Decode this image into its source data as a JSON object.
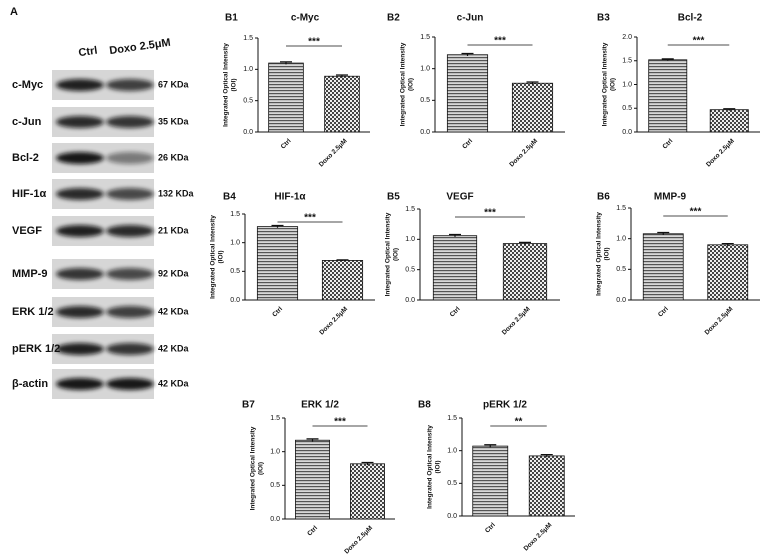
{
  "blot": {
    "label": "A",
    "lanes": [
      "Ctrl",
      "Doxo 2.5μM"
    ],
    "rows": [
      {
        "name": "c-Myc",
        "size": "67 KDa"
      },
      {
        "name": "c-Jun",
        "size": "35 KDa"
      },
      {
        "name": "Bcl-2",
        "size": "26 KDa"
      },
      {
        "name": "HIF-1α",
        "size": "132 KDa"
      },
      {
        "name": "VEGF",
        "size": "21 KDa"
      },
      {
        "name": "MMP-9",
        "size": "92 KDa"
      },
      {
        "name": "ERK 1/2",
        "size": "42 KDa"
      },
      {
        "name": "pERK 1/2",
        "size": "42 KDa"
      },
      {
        "name": "β-actin",
        "size": "42 KDa"
      }
    ]
  },
  "chart_data": [
    {
      "type": "bar",
      "panel": "B1",
      "title": "c-Myc",
      "ylabel": [
        "Integrated  Optical Intensity",
        "(IOI)"
      ],
      "categories": [
        "Ctrl",
        "Doxo 2.5μM"
      ],
      "values": [
        1.1,
        0.89
      ],
      "errors": [
        0.02,
        0.02
      ],
      "annotation": "***",
      "ylim": [
        0,
        1.5
      ],
      "yticks": [
        {
          "value": 0,
          "label": "0.0"
        },
        {
          "value": 0.5,
          "label": "0.5"
        },
        {
          "value": 1,
          "label": "1.0"
        },
        {
          "value": 1.5,
          "label": "1.5"
        }
      ]
    },
    {
      "type": "bar",
      "panel": "B2",
      "title": "c-Jun",
      "ylabel": [
        "Integrated  Optical Intensity",
        "(IOI)"
      ],
      "categories": [
        "Ctrl",
        "Doxo 2.5μM"
      ],
      "values": [
        1.22,
        0.77
      ],
      "errors": [
        0.02,
        0.02
      ],
      "annotation": "***",
      "ylim": [
        0,
        1.5
      ],
      "yticks": [
        {
          "value": 0,
          "label": "0.0"
        },
        {
          "value": 0.5,
          "label": "0.5"
        },
        {
          "value": 1,
          "label": "1.0"
        },
        {
          "value": 1.5,
          "label": "1.5"
        }
      ]
    },
    {
      "type": "bar",
      "panel": "B3",
      "title": "Bcl-2",
      "ylabel": [
        "Integrated  Optical Intensity",
        "(IOI)"
      ],
      "categories": [
        "Ctrl",
        "Doxo 2.5μM"
      ],
      "values": [
        1.52,
        0.47
      ],
      "errors": [
        0.02,
        0.02
      ],
      "annotation": "***",
      "ylim": [
        0,
        2
      ],
      "yticks": [
        {
          "value": 0,
          "label": "0.0"
        },
        {
          "value": 0.5,
          "label": "0.5"
        },
        {
          "value": 1,
          "label": "1.0"
        },
        {
          "value": 1.5,
          "label": "1.5"
        },
        {
          "value": 2,
          "label": "2.0"
        }
      ]
    },
    {
      "type": "bar",
      "panel": "B4",
      "title": "HIF-1α",
      "ylabel": [
        "Integrated  Optical Intensity",
        "(IOI)"
      ],
      "categories": [
        "Ctrl",
        "Doxo 2.5μM"
      ],
      "values": [
        1.28,
        0.69
      ],
      "errors": [
        0.02,
        0.01
      ],
      "annotation": "***",
      "ylim": [
        0,
        1.5
      ],
      "yticks": [
        {
          "value": 0,
          "label": "0.0"
        },
        {
          "value": 0.5,
          "label": "0.5"
        },
        {
          "value": 1,
          "label": "1.0"
        },
        {
          "value": 1.5,
          "label": "1.5"
        }
      ]
    },
    {
      "type": "bar",
      "panel": "B5",
      "title": "VEGF",
      "ylabel": [
        "Integrated  Optical Intensity",
        "(IOI)"
      ],
      "categories": [
        "Ctrl",
        "Doxo 2.5μM"
      ],
      "values": [
        1.06,
        0.93
      ],
      "errors": [
        0.02,
        0.02
      ],
      "annotation": "***",
      "ylim": [
        0,
        1.5
      ],
      "yticks": [
        {
          "value": 0,
          "label": "0.0"
        },
        {
          "value": 0.5,
          "label": "0.5"
        },
        {
          "value": 1,
          "label": "1.0"
        },
        {
          "value": 1.5,
          "label": "1.5"
        }
      ]
    },
    {
      "type": "bar",
      "panel": "B6",
      "title": "MMP-9",
      "ylabel": [
        "Integrated  Optical Intensity",
        "(IOI)"
      ],
      "categories": [
        "Ctrl",
        "Doxo 2.5μM"
      ],
      "values": [
        1.08,
        0.9
      ],
      "errors": [
        0.02,
        0.02
      ],
      "annotation": "***",
      "ylim": [
        0,
        1.5
      ],
      "yticks": [
        {
          "value": 0,
          "label": "0.0"
        },
        {
          "value": 0.5,
          "label": "0.5"
        },
        {
          "value": 1,
          "label": "1.0"
        },
        {
          "value": 1.5,
          "label": "1.5"
        }
      ]
    },
    {
      "type": "bar",
      "panel": "B7",
      "title": "ERK 1/2",
      "ylabel": [
        "Integrated  Optical Intensity",
        "(IOI)"
      ],
      "categories": [
        "Ctrl",
        "Doxo 2.5μM"
      ],
      "values": [
        1.17,
        0.82
      ],
      "errors": [
        0.02,
        0.02
      ],
      "annotation": "***",
      "ylim": [
        0,
        1.5
      ],
      "yticks": [
        {
          "value": 0,
          "label": "0.0"
        },
        {
          "value": 0.5,
          "label": "0.5"
        },
        {
          "value": 1,
          "label": "1.0"
        },
        {
          "value": 1.5,
          "label": "1.5"
        }
      ]
    },
    {
      "type": "bar",
      "panel": "B8",
      "title": "pERK 1/2",
      "ylabel": [
        "Integrated  Optical Intensity",
        "(IOI)"
      ],
      "categories": [
        "Ctrl",
        "Doxo 2.5μM"
      ],
      "values": [
        1.07,
        0.92
      ],
      "errors": [
        0.02,
        0.02
      ],
      "annotation": "**",
      "ylim": [
        0,
        1.5
      ],
      "yticks": [
        {
          "value": 0,
          "label": "0.0"
        },
        {
          "value": 0.5,
          "label": "0.5"
        },
        {
          "value": 1,
          "label": "1.0"
        },
        {
          "value": 1.5,
          "label": "1.5"
        }
      ]
    }
  ]
}
